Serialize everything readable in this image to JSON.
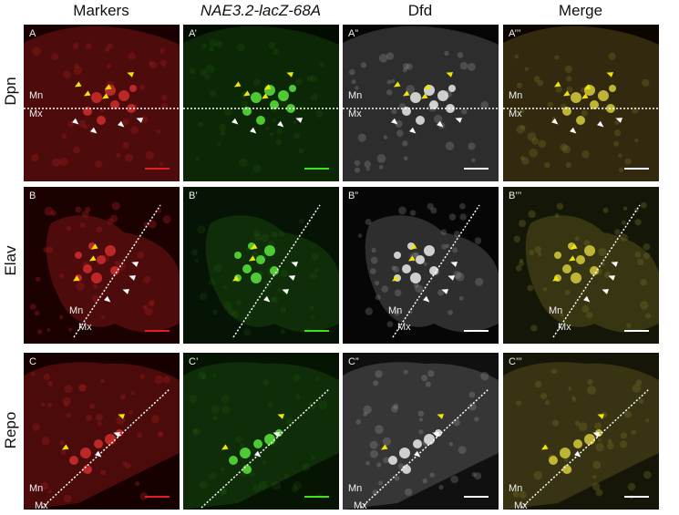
{
  "columns": [
    "Markers",
    "NAE3.2-lacZ-68A",
    "Dfd",
    "Merge"
  ],
  "rows": [
    "Dpn",
    "Elav",
    "Repo"
  ],
  "panels": [
    [
      "A",
      "A’",
      "A”",
      "A’’’"
    ],
    [
      "B",
      "B’",
      "B”",
      "B’’’"
    ],
    [
      "C",
      "C’",
      "C”",
      "C’’’"
    ]
  ],
  "regions": {
    "upper": "Mn",
    "lower": "Mx"
  },
  "colors": {
    "markers": "#d42a2a",
    "reporter": "#3fd02a",
    "dfd": "#e6e6e6",
    "arrow_yellow": "#f2e600",
    "arrow_white": "#ffffff"
  }
}
